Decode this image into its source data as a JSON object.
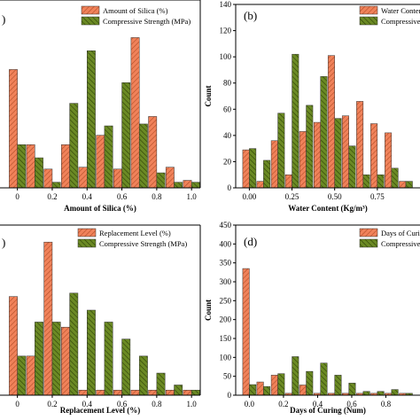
{
  "colors": {
    "bar_a": "#f0825a",
    "bar_b": "#6b8a24",
    "axis": "#000000"
  },
  "chart_data": [
    {
      "type": "bar",
      "panel": "a",
      "panel_label": ")",
      "xlabel": "Amount of Silica (%)",
      "ylabel": "",
      "xlim": [
        -0.1,
        1.05
      ],
      "ylim": [
        0,
        100
      ],
      "xticks": [
        0.0,
        0.2,
        0.4,
        0.6,
        0.8,
        1.0
      ],
      "xtick_labels": [
        "0",
        "0.2",
        "0.4",
        "0.6",
        "0.8",
        "1.0"
      ],
      "yticks": [],
      "ytick_labels": [],
      "x": [
        0.0,
        0.1,
        0.2,
        0.3,
        0.4,
        0.5,
        0.6,
        0.7,
        0.8,
        0.9,
        1.0
      ],
      "series": [
        {
          "name": "Amount of Silica (%)",
          "values": [
            63,
            23,
            10,
            23,
            11,
            28,
            10,
            80,
            38,
            11,
            4
          ]
        },
        {
          "name": "Compressive Strength (MPa)",
          "values": [
            23,
            16,
            3,
            45,
            73,
            33,
            56,
            34,
            8,
            3,
            3
          ]
        }
      ],
      "legend": "top-right",
      "legend_entries": [
        "Amount of Silica (%)",
        "Compressive Strength (MPa)"
      ]
    },
    {
      "type": "bar",
      "panel": "b",
      "panel_label": "(b)",
      "xlabel": "Water Content (Kg/m³)",
      "ylabel": "Count",
      "xlim": [
        -0.08,
        1.0
      ],
      "ylim": [
        0,
        140
      ],
      "xticks": [
        0.0,
        0.25,
        0.5,
        0.75
      ],
      "xtick_labels": [
        "0.00",
        "0.25",
        "0.50",
        "0.75"
      ],
      "yticks": [
        0,
        20,
        40,
        60,
        80,
        100,
        120,
        140
      ],
      "ytick_labels": [
        "0",
        "20",
        "40",
        "60",
        "80",
        "100",
        "120",
        "140"
      ],
      "x": [
        0.0,
        0.083,
        0.167,
        0.25,
        0.333,
        0.417,
        0.5,
        0.583,
        0.667,
        0.75,
        0.833,
        0.917
      ],
      "series": [
        {
          "name": "Water Content",
          "values": [
            29,
            5,
            36,
            10,
            43,
            50,
            101,
            55,
            66,
            49,
            42,
            5
          ]
        },
        {
          "name": "Compressive",
          "values": [
            30,
            21,
            57,
            102,
            63,
            85,
            53,
            32,
            10,
            10,
            15,
            5
          ]
        }
      ],
      "legend": "top-right",
      "legend_entries": [
        "Water Content",
        "Compressive"
      ]
    },
    {
      "type": "bar",
      "panel": "c",
      "panel_label": ")",
      "xlabel": "Replacement Level (%)",
      "ylabel": "",
      "xlim": [
        -0.1,
        1.05
      ],
      "ylim": [
        0,
        100
      ],
      "xticks": [
        0.0,
        0.2,
        0.4,
        0.6,
        0.8,
        1.0
      ],
      "xtick_labels": [
        "0",
        "0.2",
        "0.4",
        "0.6",
        "0.8",
        "1.0"
      ],
      "yticks": [],
      "ytick_labels": [],
      "x": [
        0.0,
        0.1,
        0.2,
        0.3,
        0.4,
        0.5,
        0.6,
        0.7,
        0.8,
        0.9,
        1.0
      ],
      "series": [
        {
          "name": "Replacement Level (%)",
          "values": [
            58,
            23,
            90,
            40,
            3,
            3,
            3,
            3,
            3,
            3,
            3
          ]
        },
        {
          "name": "Compressive Strength (MPa)",
          "values": [
            23,
            43,
            43,
            60,
            50,
            43,
            33,
            23,
            13,
            6,
            3
          ]
        }
      ],
      "legend": "top-right",
      "legend_entries": [
        "Replacement Level (%)",
        "Compressive Strength (MPa)"
      ]
    },
    {
      "type": "bar",
      "panel": "d",
      "panel_label": "(d)",
      "xlabel": "Days of Curing (Num)",
      "ylabel": "Count",
      "xlim": [
        -0.08,
        1.0
      ],
      "ylim": [
        0,
        450
      ],
      "xticks": [
        0.0,
        0.2,
        0.4,
        0.6,
        0.8
      ],
      "xtick_labels": [
        "0.0",
        "0.2",
        "0.4",
        "0.6",
        "0.8"
      ],
      "yticks": [
        0,
        50,
        100,
        150,
        200,
        250,
        300,
        350,
        400,
        450
      ],
      "ytick_labels": [
        "0",
        "50",
        "100",
        "150",
        "200",
        "250",
        "300",
        "350",
        "400",
        "450"
      ],
      "x": [
        0.0,
        0.083,
        0.167,
        0.25,
        0.333,
        0.417,
        0.5,
        0.583,
        0.667,
        0.75,
        0.833,
        0.917
      ],
      "series": [
        {
          "name": "Days of Curing (Num",
          "values": [
            335,
            35,
            53,
            5,
            27,
            5,
            5,
            5,
            5,
            5,
            5,
            5
          ]
        },
        {
          "name": "Compressive Strength (MPa",
          "values": [
            28,
            23,
            57,
            102,
            63,
            85,
            53,
            32,
            10,
            10,
            15,
            5
          ]
        }
      ],
      "legend": "top-right",
      "legend_entries": [
        "Days of Curing (Num",
        "Compressive Strength (MPa"
      ]
    }
  ]
}
